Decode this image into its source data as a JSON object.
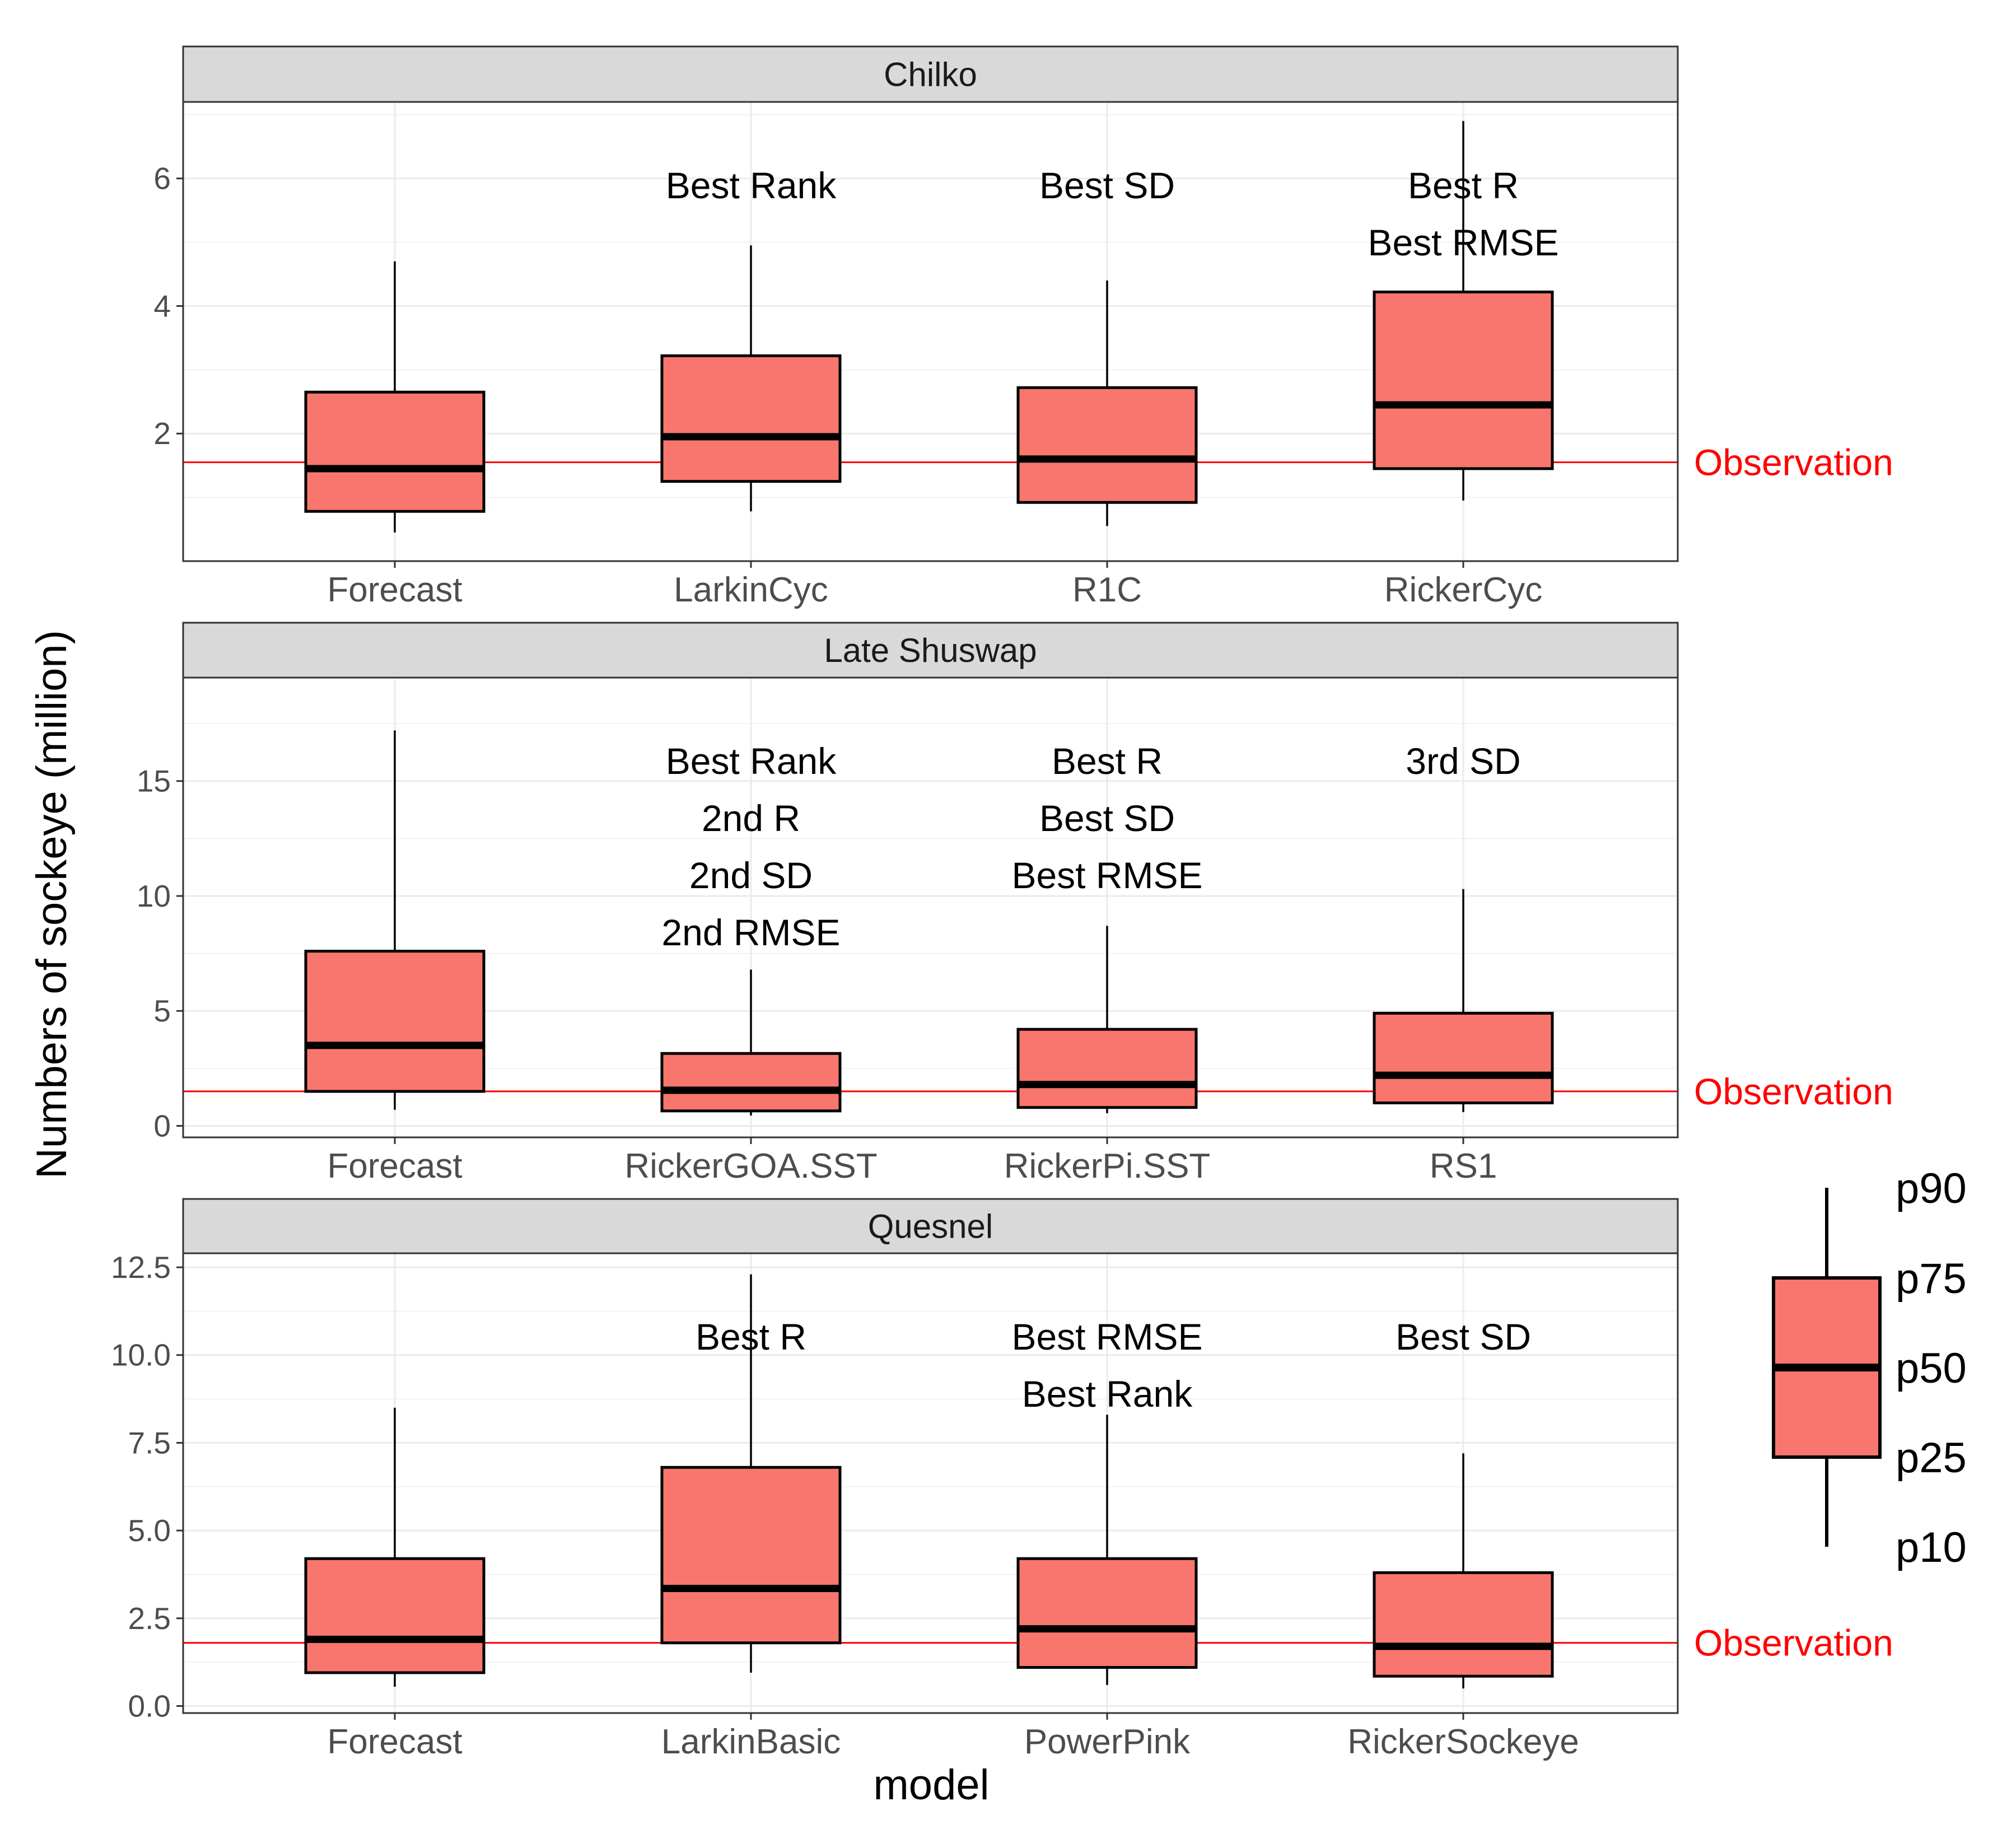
{
  "chart_data": {
    "type": "boxplot",
    "xlabel": "model",
    "ylabel": "Numbers of sockeye (million)",
    "colors": {
      "box_fill": "#F8766D",
      "observation": "#FF0000",
      "strip_bg": "#D9D9D9"
    },
    "observation_label": "Observation",
    "legend": {
      "labels": [
        "p90",
        "p75",
        "p50",
        "p25",
        "p10"
      ],
      "placement": "right"
    },
    "panels": [
      {
        "title": "Chilko",
        "ylim": [
          0,
          7.2
        ],
        "yticks": [
          2,
          4,
          6
        ],
        "ytick_labels": [
          "2",
          "4",
          "6"
        ],
        "observation": 1.55,
        "boxes": [
          {
            "category": "Forecast",
            "p10": 0.45,
            "p25": 0.78,
            "p50": 1.45,
            "p75": 2.65,
            "p90": 4.7,
            "annotations": []
          },
          {
            "category": "LarkinCyc",
            "p10": 0.78,
            "p25": 1.25,
            "p50": 1.95,
            "p75": 3.22,
            "p90": 4.95,
            "annotations": [
              "Best Rank"
            ]
          },
          {
            "category": "R1C",
            "p10": 0.55,
            "p25": 0.92,
            "p50": 1.6,
            "p75": 2.72,
            "p90": 4.4,
            "annotations": [
              "Best SD"
            ]
          },
          {
            "category": "RickerCyc",
            "p10": 0.95,
            "p25": 1.45,
            "p50": 2.45,
            "p75": 4.22,
            "p90": 6.9,
            "annotations": [
              "Best R",
              "Best RMSE"
            ]
          }
        ]
      },
      {
        "title": "Late Shuswap",
        "ylim": [
          -0.5,
          19.5
        ],
        "yticks": [
          0,
          5,
          10,
          15
        ],
        "ytick_labels": [
          "0",
          "5",
          "10",
          "15"
        ],
        "observation": 1.5,
        "boxes": [
          {
            "category": "Forecast",
            "p10": 0.7,
            "p25": 1.5,
            "p50": 3.5,
            "p75": 7.6,
            "p90": 17.2,
            "annotations": []
          },
          {
            "category": "RickerGOA.SST",
            "p10": 0.45,
            "p25": 0.65,
            "p50": 1.55,
            "p75": 3.15,
            "p90": 6.8,
            "annotations": [
              "Best Rank",
              "2nd R",
              "2nd SD",
              "2nd RMSE"
            ]
          },
          {
            "category": "RickerPi.SST",
            "p10": 0.55,
            "p25": 0.8,
            "p50": 1.8,
            "p75": 4.2,
            "p90": 8.7,
            "annotations": [
              "Best R",
              "Best SD",
              "Best RMSE"
            ]
          },
          {
            "category": "RS1",
            "p10": 0.6,
            "p25": 1.0,
            "p50": 2.2,
            "p75": 4.9,
            "p90": 10.3,
            "annotations": [
              "3rd SD"
            ]
          }
        ]
      },
      {
        "title": "Quesnel",
        "ylim": [
          -0.2,
          12.9
        ],
        "yticks": [
          0,
          2.5,
          5,
          7.5,
          10,
          12.5
        ],
        "ytick_labels": [
          "0.0",
          "2.5",
          "5.0",
          "7.5",
          "10.0",
          "12.5"
        ],
        "observation": 1.8,
        "boxes": [
          {
            "category": "Forecast",
            "p10": 0.55,
            "p25": 0.95,
            "p50": 1.9,
            "p75": 4.2,
            "p90": 8.5,
            "annotations": []
          },
          {
            "category": "LarkinBasic",
            "p10": 0.95,
            "p25": 1.8,
            "p50": 3.35,
            "p75": 6.8,
            "p90": 12.3,
            "annotations": [
              "Best R"
            ]
          },
          {
            "category": "PowerPink",
            "p10": 0.6,
            "p25": 1.1,
            "p50": 2.2,
            "p75": 4.2,
            "p90": 8.3,
            "annotations": [
              "Best RMSE",
              "Best Rank"
            ]
          },
          {
            "category": "RickerSockeye",
            "p10": 0.5,
            "p25": 0.85,
            "p50": 1.7,
            "p75": 3.8,
            "p90": 7.2,
            "annotations": [
              "Best SD"
            ]
          }
        ]
      }
    ]
  }
}
